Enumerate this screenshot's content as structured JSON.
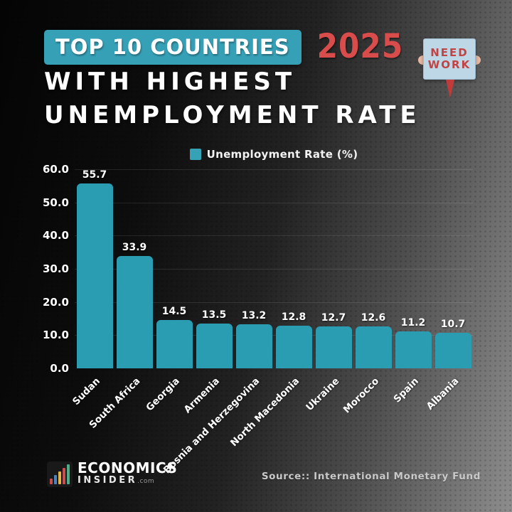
{
  "header": {
    "badge": "TOP 10 COUNTRIES",
    "year": "2025",
    "title_line1": "WITH HIGHEST",
    "title_line2": "UNEMPLOYMENT RATE",
    "sign_line1": "NEED",
    "sign_line2": "WORK"
  },
  "legend": {
    "label": "Unemployment Rate (%)"
  },
  "chart_data": {
    "type": "bar",
    "title": "Top 10 Countries with Highest Unemployment Rate 2025",
    "categories": [
      "Sudan",
      "South Africa",
      "Georgia",
      "Armenia",
      "Bosnia and Herzegovina",
      "North Macedonia",
      "Ukraine",
      "Morocco",
      "Spain",
      "Albania"
    ],
    "values": [
      55.7,
      33.9,
      14.5,
      13.5,
      13.2,
      12.8,
      12.7,
      12.6,
      11.2,
      10.7
    ],
    "series_name": "Unemployment Rate (%)",
    "ylabel": "",
    "xlabel": "",
    "ylim": [
      0,
      60
    ],
    "y_ticks": [
      "60.0",
      "50.0",
      "40.0",
      "30.0",
      "20.0",
      "10.0",
      "0.0"
    ],
    "grid": true,
    "legend_position": "top",
    "bar_color": "#2b9db2"
  },
  "footer": {
    "logo_line1": "ECONOMICS",
    "logo_line2": "INSIDER",
    "logo_suffix": ".com",
    "source": "Source:: International Monetary Fund"
  },
  "colors": {
    "bar": "#2b9db2",
    "badge": "#36a0b6",
    "year_red": "#d94c4c",
    "sign_bg": "#bdd7e7",
    "sign_text": "#c04444",
    "background_dark": "#040404",
    "background_light": "#8d8d8d",
    "logo_bar_colors": [
      "#c94f4f",
      "#4f81bd",
      "#e3b64a",
      "#c94f4f",
      "#4fae8a"
    ]
  }
}
